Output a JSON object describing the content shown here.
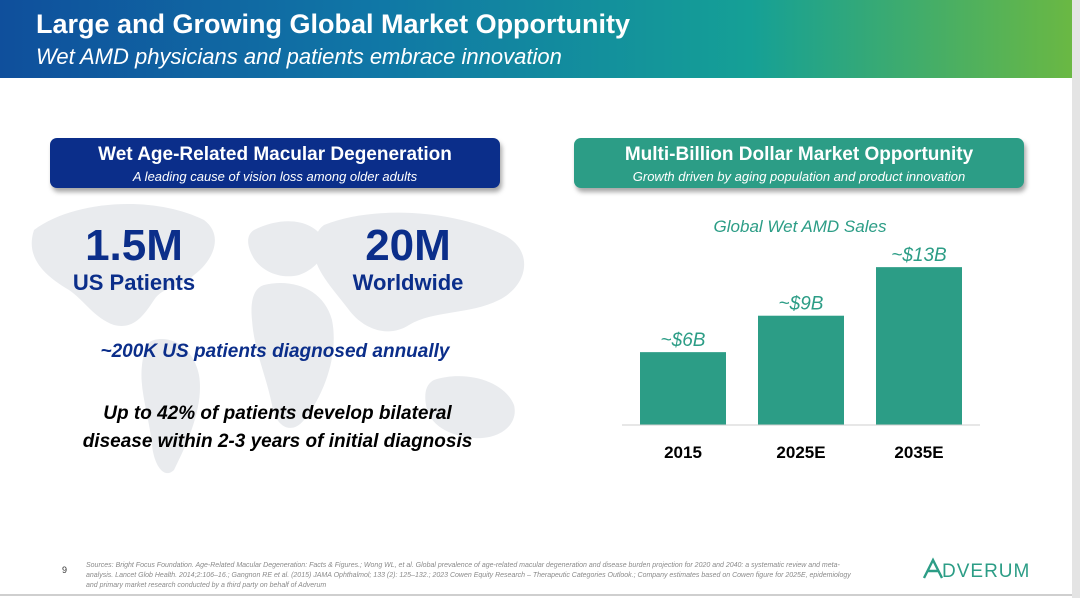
{
  "slide": {
    "title": "Large and Growing Global Market Opportunity",
    "subtitle": "Wet AMD physicians and patients embrace innovation",
    "page_number": "9"
  },
  "left_panel": {
    "header_title": "Wet Age-Related Macular Degeneration",
    "header_subtitle": "A leading cause of vision loss among older adults",
    "stats": [
      {
        "value": "1.5M",
        "label": "US Patients"
      },
      {
        "value": "20M",
        "label": "Worldwide"
      }
    ],
    "diagnosed_text": "~200K US patients diagnosed annually",
    "bilateral_line1": "Up to 42% of patients develop bilateral",
    "bilateral_line2": "disease within 2-3 years of initial diagnosis"
  },
  "right_panel": {
    "header_title": "Multi-Billion Dollar Market Opportunity",
    "header_subtitle": "Growth driven by aging population and product innovation"
  },
  "chart_data": {
    "type": "bar",
    "title": "Global Wet AMD Sales",
    "categories": [
      "2015",
      "2025E",
      "2035E"
    ],
    "values": [
      6,
      9,
      13
    ],
    "data_labels": [
      "~$6B",
      "~$9B",
      "~$13B"
    ],
    "ylim": [
      0,
      14
    ],
    "grid": false,
    "legend": "none",
    "bar_color": "#2c9d86",
    "label_color": "#2c9d86"
  },
  "footer": {
    "sources": "Sources: Bright Focus Foundation. Age-Related Macular Degeneration: Facts & Figures.; Wong WL, et al. Global prevalence of age-related macular degeneration and disease burden projection for 2020 and 2040: a systematic review and meta-analysis. Lancet Glob Health. 2014;2:106–16.; Gangnon RE et al. (2015) JAMA Ophthalmol; 133 (2): 125–132.; 2023 Cowen Equity Research – Therapeutic Categories Outlook.; Company estimates based on Cowen figure for 2025E, epidemiology and primary market research conducted by a third party on behalf of Adverum",
    "logo_text": "ADVERUM"
  },
  "colors": {
    "navy": "#0b2e8a",
    "teal": "#2c9d86",
    "logo_green": "#6ab843"
  }
}
